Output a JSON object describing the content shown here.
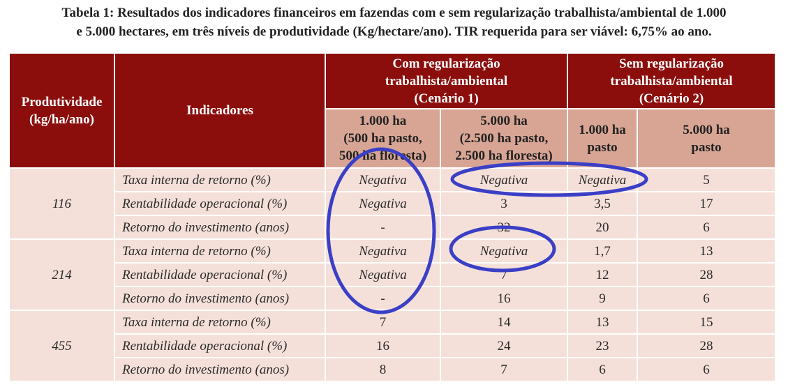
{
  "title": "Tabela 1: Resultados dos indicadores financeiros em fazendas com e sem regularização trabalhista/ambiental de 1.000\ne 5.000 hectares, em três níveis de produtividade (Kg/hectare/ano). TIR requerida para ser viável: 6,75% ao ano.",
  "table": {
    "headers": {
      "produtividade": "Produtividade\n(kg/ha/ano)",
      "indicadores": "Indicadores",
      "cenario1": "Com regularização\ntrabalhista/ambiental\n(Cenário 1)",
      "cenario2": "Sem regularização\ntrabalhista/ambiental\n(Cenário 2)",
      "sub": [
        "1.000 ha\n(500 ha pasto,\n500 ha floresta)",
        "5.000 ha\n(2.500 ha pasto,\n2.500 ha floresta)",
        "1.000 ha\npasto",
        "5.000 ha\npasto"
      ]
    },
    "groups": [
      {
        "produtividade": "116",
        "rows": [
          [
            "Taxa interna de retorno (%)",
            "Negativa",
            "Negativa",
            "Negativa",
            "5"
          ],
          [
            "Rentabilidade operacional (%)",
            "Negativa",
            "3",
            "3,5",
            "17"
          ],
          [
            "Retorno do investimento (anos)",
            "-",
            "32",
            "20",
            "6"
          ]
        ]
      },
      {
        "produtividade": "214",
        "rows": [
          [
            "Taxa interna de retorno (%)",
            "Negativa",
            "Negativa",
            "1,7",
            "13"
          ],
          [
            "Rentabilidade operacional (%)",
            "Negativa",
            "7",
            "12",
            "28"
          ],
          [
            "Retorno do investimento (anos)",
            "-",
            "16",
            "9",
            "6"
          ]
        ]
      },
      {
        "produtividade": "455",
        "rows": [
          [
            "Taxa interna de retorno (%)",
            "7",
            "14",
            "13",
            "15"
          ],
          [
            "Rentabilidade operacional (%)",
            "16",
            "24",
            "23",
            "28"
          ],
          [
            "Retorno do investimento (anos)",
            "8",
            "7",
            "6",
            "6"
          ]
        ]
      }
    ]
  }
}
